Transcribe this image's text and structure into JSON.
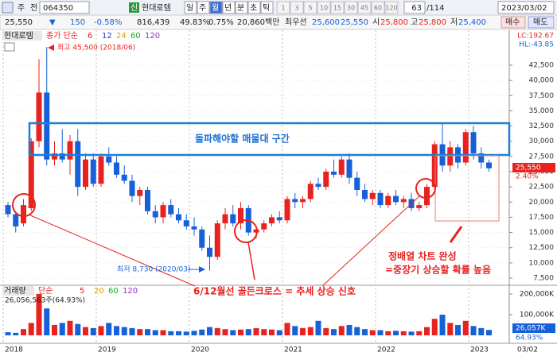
{
  "toolbar": {
    "market": "주",
    "prev": "전",
    "code": "064350",
    "badge": "신",
    "name": "현대로템",
    "period_buttons": [
      "일",
      "주",
      "월",
      "년",
      "분",
      "초",
      "틱"
    ],
    "interval_buttons": [
      "1",
      "3",
      "5",
      "10",
      "15",
      "30",
      "45",
      "60",
      "120"
    ],
    "count": "63",
    "total": "/114",
    "date": "2023/03/02"
  },
  "quote_bar": {
    "price": "25,550",
    "change_sign": "▼",
    "change": "150",
    "change_pct": "-0.58%",
    "volume": "816,439",
    "volume_ratio": "49.83%",
    "turnover": "0.75%",
    "amount": "20,860백만",
    "best_label": "최우선",
    "ask": "25,600",
    "bid": "25,550",
    "open_label": "시",
    "open": "25,800",
    "high_label": "고",
    "high": "25,800",
    "low_label": "저",
    "low": "25,400",
    "buy": "매수",
    "sell": "매도"
  },
  "chart_data": [
    {
      "type": "candlestick",
      "title": "현대로템",
      "legend": {
        "label": "종가 단순",
        "periods": [
          6,
          12,
          24,
          60,
          120
        ],
        "colors": [
          "#e0201c",
          "#1c3fd0",
          "#e0a000",
          "#10b010",
          "#9030c0"
        ]
      },
      "up_color": "#e8231f",
      "down_color": "#1660d8",
      "grid": true,
      "categories": [
        "2018",
        null,
        null,
        null,
        null,
        null,
        null,
        null,
        null,
        null,
        null,
        null,
        "2019",
        null,
        null,
        null,
        null,
        null,
        null,
        null,
        null,
        null,
        null,
        null,
        "2020",
        null,
        null,
        null,
        null,
        null,
        null,
        null,
        null,
        null,
        null,
        null,
        "2021",
        null,
        null,
        null,
        null,
        null,
        null,
        null,
        null,
        null,
        null,
        null,
        "2022",
        null,
        null,
        null,
        null,
        null,
        null,
        null,
        null,
        null,
        null,
        null,
        "2023",
        null,
        null
      ],
      "open": [
        19500,
        18000,
        16500,
        19000,
        30000,
        38000,
        27000,
        28000,
        27000,
        30000,
        22500,
        27000,
        23000,
        27500,
        26500,
        24500,
        23500,
        21000,
        22000,
        18500,
        17500,
        19500,
        18000,
        17000,
        16000,
        15500,
        12500,
        11000,
        16500,
        18000,
        16500,
        19000,
        15000,
        15500,
        16500,
        17500,
        17000,
        20500,
        20000,
        20500,
        23000,
        22500,
        25000,
        24500,
        27000,
        24000,
        22000,
        20500,
        21500,
        19500,
        21000,
        20000,
        20500,
        19000,
        19500,
        22500,
        29500,
        26000,
        29000,
        26500,
        31500,
        28000,
        26500
      ],
      "high": [
        20000,
        18500,
        20500,
        30500,
        43500,
        45500,
        30000,
        32000,
        31000,
        32000,
        28000,
        28000,
        28000,
        29000,
        27500,
        26000,
        24500,
        22500,
        22500,
        19500,
        20000,
        20500,
        19000,
        18000,
        17500,
        16000,
        14500,
        17000,
        19000,
        19500,
        20000,
        19500,
        16000,
        17000,
        18000,
        18500,
        21000,
        21500,
        21000,
        23500,
        24000,
        25500,
        27000,
        27500,
        28000,
        25000,
        23000,
        22000,
        22000,
        21500,
        22000,
        21000,
        21500,
        20000,
        23000,
        30000,
        33000,
        30000,
        29500,
        32000,
        32500,
        29000,
        27000
      ],
      "low": [
        17500,
        15000,
        16000,
        18500,
        29000,
        26000,
        26000,
        26500,
        24500,
        21000,
        22000,
        22500,
        22500,
        26000,
        24000,
        23000,
        20000,
        19500,
        18000,
        16500,
        16500,
        17500,
        16500,
        15500,
        14500,
        12000,
        8730,
        10500,
        15500,
        16000,
        15500,
        14500,
        14000,
        15000,
        16000,
        16500,
        16500,
        19000,
        19000,
        20000,
        22000,
        22000,
        24000,
        24000,
        23000,
        21000,
        20000,
        19500,
        19000,
        19000,
        19500,
        19000,
        18500,
        18500,
        19000,
        22000,
        25000,
        25000,
        25500,
        26000,
        27000,
        25500,
        25000
      ],
      "close": [
        18000,
        16000,
        19500,
        30000,
        38000,
        27000,
        28000,
        27000,
        30000,
        22500,
        27000,
        23000,
        27500,
        26500,
        24500,
        23500,
        21000,
        22000,
        18500,
        17500,
        19500,
        18000,
        17000,
        16000,
        15500,
        12500,
        11000,
        16500,
        18000,
        16500,
        19000,
        15000,
        15500,
        16500,
        17500,
        17000,
        20500,
        20000,
        20500,
        23000,
        22500,
        25000,
        24500,
        27000,
        24000,
        22000,
        20500,
        21500,
        19500,
        21000,
        20000,
        20500,
        19000,
        19500,
        22500,
        29500,
        26000,
        29000,
        26500,
        31500,
        28000,
        26500,
        25550
      ],
      "ylim": [
        6850,
        47330
      ],
      "yticks": [
        {
          "value": 7500,
          "label": "7,500"
        },
        {
          "value": 10000,
          "label": "10,000"
        },
        {
          "value": 12500,
          "label": "12,500"
        },
        {
          "value": 15000,
          "label": "15,000"
        },
        {
          "value": 17500,
          "label": "17,500"
        },
        {
          "value": 20000,
          "label": "20,000"
        },
        {
          "value": 22500,
          "label": "22,500"
        },
        {
          "value": 25000,
          "label": "25,000"
        },
        {
          "value": 27500,
          "label": "27,500"
        },
        {
          "value": 30000,
          "label": "30,000"
        },
        {
          "value": 32500,
          "label": "32,500"
        },
        {
          "value": 35000,
          "label": "35,000"
        },
        {
          "value": 37500,
          "label": "37,500"
        },
        {
          "value": 40000,
          "label": "40,000"
        },
        {
          "value": 42500,
          "label": "42,500"
        }
      ],
      "current_price": "25,550",
      "current_pct": "2.40%",
      "lc": "LC:192.67",
      "hl": "HL:-43.85"
    },
    {
      "type": "bar",
      "title": "거래량",
      "legend": {
        "label": "단순",
        "periods": [
          5,
          20,
          60,
          120
        ],
        "colors": [
          "#e0201c",
          "#e0a000",
          "#10b010",
          "#9030c0"
        ]
      },
      "info": "26,056,563주(64.93%)",
      "values": [
        15000,
        12000,
        30000,
        60000,
        200000,
        130000,
        50000,
        60000,
        70000,
        55000,
        40000,
        35000,
        45000,
        60000,
        45000,
        40000,
        35000,
        30000,
        30000,
        25000,
        25000,
        20000,
        20000,
        18000,
        22000,
        28000,
        40000,
        35000,
        30000,
        25000,
        28000,
        30000,
        35000,
        30000,
        28000,
        25000,
        60000,
        45000,
        35000,
        40000,
        70000,
        35000,
        30000,
        45000,
        50000,
        40000,
        30000,
        25000,
        25000,
        20000,
        22000,
        20000,
        18000,
        20000,
        40000,
        80000,
        100000,
        60000,
        50000,
        70000,
        45000,
        35000,
        26057
      ],
      "ylim": [
        0,
        219000
      ],
      "yticks": [
        {
          "value": 100000,
          "label": "100,000K"
        },
        {
          "value": 200000,
          "label": "200,000K"
        }
      ],
      "current_label": "26,057K",
      "current_pct": "64.93%",
      "x_end_label": "03/02"
    }
  ],
  "annotations": {
    "high": "최고 45,500 (2018/06)",
    "low": "최저 8,730 (2020/03)",
    "zone": "돌파해야할 매물대 구간",
    "cross": "6/12월선 골든크로스 = 추세 상승 신호",
    "aligned1": "정배열 차트 완성",
    "aligned2": "=중장기 상승할 확률 높음"
  }
}
